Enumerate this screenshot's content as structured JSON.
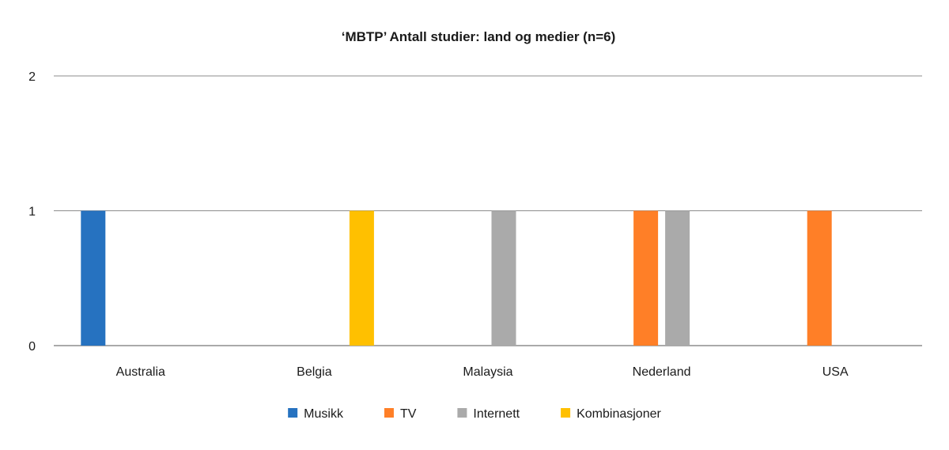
{
  "chart_data": {
    "type": "bar",
    "title": "‘MBTP’ Antall studier: land og medier (n=6)",
    "xlabel": "",
    "ylabel": "",
    "categories": [
      "Australia",
      "Belgia",
      "Malaysia",
      "Nederland",
      "USA"
    ],
    "series": [
      {
        "name": "Musikk",
        "color": "#2672C0",
        "values": [
          1,
          0,
          0,
          0,
          0
        ]
      },
      {
        "name": "TV",
        "color": "#FF7F27",
        "values": [
          0,
          0,
          0,
          1,
          1
        ]
      },
      {
        "name": "Internett",
        "color": "#AAAAAA",
        "values": [
          0,
          0,
          1,
          1,
          0
        ]
      },
      {
        "name": "Kombinasjoner",
        "color": "#FFC000",
        "values": [
          0,
          1,
          0,
          0,
          0
        ]
      }
    ],
    "ylim": [
      0,
      2
    ],
    "yticks": [
      0,
      1,
      2
    ],
    "grid": true,
    "legend_position": "bottom"
  }
}
